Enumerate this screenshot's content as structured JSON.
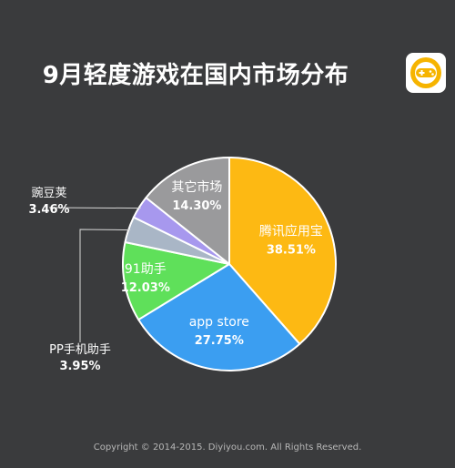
{
  "title": "9月轻度游戏在国内市场分布",
  "logo_icon": "gamepad-icon",
  "copyright": "Copyright © 2014-2015. Diyiyou.com. All Rights Reserved.",
  "colors": {
    "background": "#3a3b3d",
    "logo_ring": "#f6b400"
  },
  "chart_data": {
    "type": "pie",
    "slices": [
      {
        "label": "腾讯应用宝",
        "value": 38.51,
        "value_label": "38.51%",
        "color": "#fdb913",
        "label_pos": "inside"
      },
      {
        "label": "app store",
        "value": 27.75,
        "value_label": "27.75%",
        "color": "#3b9ef1",
        "label_pos": "inside"
      },
      {
        "label": "91助手",
        "value": 12.03,
        "value_label": "12.03%",
        "color": "#5fe05a",
        "label_pos": "inside"
      },
      {
        "label": "PP手机助手",
        "value": 3.95,
        "value_label": "3.95%",
        "color": "#a9b6c6",
        "label_pos": "outside"
      },
      {
        "label": "豌豆荚",
        "value": 3.46,
        "value_label": "3.46%",
        "color": "#a798ee",
        "label_pos": "outside"
      },
      {
        "label": "其它市场",
        "value": 14.3,
        "value_label": "14.30%",
        "color": "#9a9a9c",
        "label_pos": "inside"
      }
    ]
  }
}
